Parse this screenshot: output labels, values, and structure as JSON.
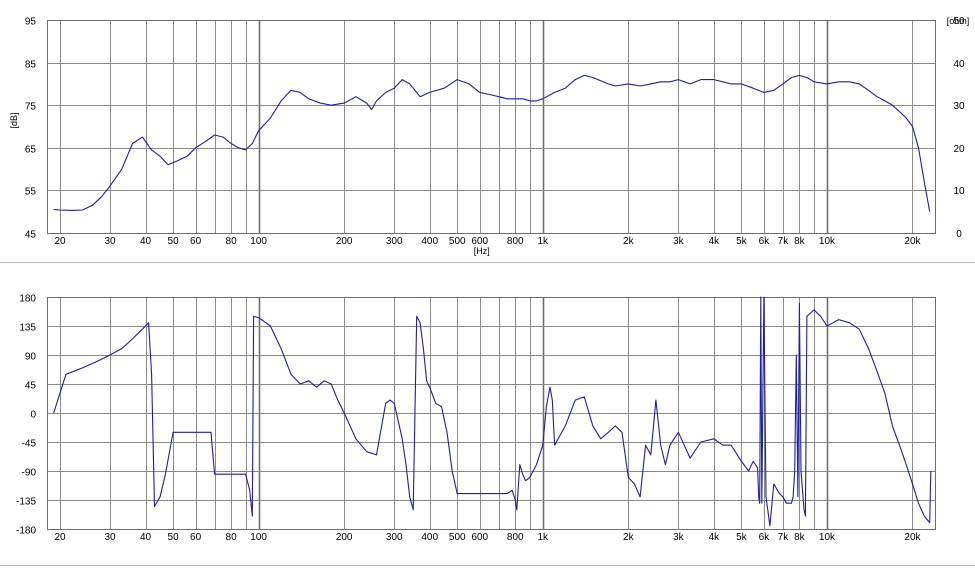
{
  "chart_data": [
    {
      "type": "line",
      "x_scale": "log",
      "xlim": [
        18,
        24000
      ],
      "ylim": [
        45,
        95
      ],
      "y2lim": [
        0,
        50
      ],
      "xlabel": "[Hz]",
      "ylabel": "[dB]",
      "y2label": "[ohm]",
      "grid": true,
      "line_color": "#1f1f9f",
      "x_ticks": [
        {
          "v": 20,
          "t": "20"
        },
        {
          "v": 30,
          "t": "30"
        },
        {
          "v": 40,
          "t": "40"
        },
        {
          "v": 50,
          "t": "50"
        },
        {
          "v": 60,
          "t": "60"
        },
        {
          "v": 80,
          "t": "80"
        },
        {
          "v": 100,
          "t": "100"
        },
        {
          "v": 200,
          "t": "200"
        },
        {
          "v": 300,
          "t": "300"
        },
        {
          "v": 400,
          "t": "400"
        },
        {
          "v": 500,
          "t": "500"
        },
        {
          "v": 600,
          "t": "600"
        },
        {
          "v": 800,
          "t": "800"
        },
        {
          "v": 1000,
          "t": "1k"
        },
        {
          "v": 2000,
          "t": "2k"
        },
        {
          "v": 3000,
          "t": "3k"
        },
        {
          "v": 4000,
          "t": "4k"
        },
        {
          "v": 5000,
          "t": "5k"
        },
        {
          "v": 6000,
          "t": "6k"
        },
        {
          "v": 7000,
          "t": "7k"
        },
        {
          "v": 8000,
          "t": "8k"
        },
        {
          "v": 10000,
          "t": "10k"
        },
        {
          "v": 20000,
          "t": "20k"
        }
      ],
      "y_ticks": [
        95,
        85,
        75,
        65,
        55,
        45
      ],
      "y2_ticks": [
        50,
        40,
        30,
        20,
        10,
        0
      ],
      "series": [
        {
          "x": [
            19,
            20,
            22,
            24,
            26,
            28,
            30,
            33,
            36,
            39,
            42,
            45,
            48,
            52,
            56,
            60,
            65,
            70,
            75,
            80,
            85,
            90,
            95,
            100,
            110,
            120,
            130,
            140,
            150,
            165,
            180,
            200,
            220,
            240,
            250,
            260,
            280,
            300,
            320,
            340,
            370,
            400,
            450,
            500,
            550,
            600,
            650,
            700,
            750,
            800,
            850,
            900,
            950,
            1000,
            1100,
            1200,
            1300,
            1400,
            1500,
            1700,
            1800,
            2000,
            2200,
            2400,
            2600,
            2800,
            3000,
            3300,
            3600,
            4000,
            4300,
            4600,
            5000,
            5500,
            6000,
            6500,
            7000,
            7500,
            8000,
            8500,
            9000,
            10000,
            11000,
            12000,
            13000,
            14000,
            15000,
            16000,
            17000,
            18000,
            19000,
            20000,
            21000,
            22000,
            23000
          ],
          "y": [
            50.5,
            50.4,
            50.3,
            50.4,
            51.5,
            53.5,
            56,
            60,
            66,
            67.5,
            64.5,
            63,
            61,
            62,
            63,
            65,
            66.5,
            68,
            67.5,
            66,
            65,
            64.5,
            66,
            69,
            72,
            76,
            78.5,
            78,
            76.5,
            75.5,
            75,
            75.5,
            77,
            75.5,
            74,
            76,
            78,
            79,
            81,
            80,
            77,
            78,
            79,
            81,
            80,
            78,
            77.5,
            77,
            76.5,
            76.5,
            76.5,
            76,
            76,
            76.5,
            78,
            79,
            81,
            82,
            81.5,
            80,
            79.5,
            80,
            79.5,
            80,
            80.5,
            80.5,
            81,
            80,
            81,
            81,
            80.5,
            80,
            80,
            79,
            78,
            78.5,
            80,
            81.5,
            82,
            81.5,
            80.5,
            80,
            80.5,
            80.5,
            80,
            78.5,
            77,
            76,
            75,
            73.5,
            72,
            70,
            65,
            57,
            50
          ]
        }
      ]
    },
    {
      "type": "line",
      "x_scale": "log",
      "xlim": [
        18,
        24000
      ],
      "ylim": [
        -180,
        180
      ],
      "grid": true,
      "line_color": "#1f1f9f",
      "x_ticks": [
        {
          "v": 20,
          "t": "20"
        },
        {
          "v": 30,
          "t": "30"
        },
        {
          "v": 40,
          "t": "40"
        },
        {
          "v": 50,
          "t": "50"
        },
        {
          "v": 60,
          "t": "60"
        },
        {
          "v": 80,
          "t": "80"
        },
        {
          "v": 100,
          "t": "100"
        },
        {
          "v": 200,
          "t": "200"
        },
        {
          "v": 300,
          "t": "300"
        },
        {
          "v": 400,
          "t": "400"
        },
        {
          "v": 500,
          "t": "500"
        },
        {
          "v": 600,
          "t": "600"
        },
        {
          "v": 800,
          "t": "800"
        },
        {
          "v": 1000,
          "t": "1k"
        },
        {
          "v": 2000,
          "t": "2k"
        },
        {
          "v": 3000,
          "t": "3k"
        },
        {
          "v": 4000,
          "t": "4k"
        },
        {
          "v": 5000,
          "t": "5k"
        },
        {
          "v": 6000,
          "t": "6k"
        },
        {
          "v": 7000,
          "t": "7k"
        },
        {
          "v": 8000,
          "t": "8k"
        },
        {
          "v": 10000,
          "t": "10k"
        },
        {
          "v": 20000,
          "t": "20k"
        }
      ],
      "y_ticks": [
        180,
        135,
        90,
        45,
        0,
        -45,
        -90,
        -135,
        -180
      ],
      "series": [
        {
          "x": [
            19,
            21,
            24,
            27,
            30,
            33,
            36,
            39,
            41,
            42,
            43,
            45,
            47,
            50,
            55,
            60,
            65,
            68,
            70,
            75,
            80,
            85,
            90,
            93,
            95,
            96,
            100,
            110,
            120,
            130,
            140,
            150,
            160,
            170,
            180,
            190,
            200,
            220,
            240,
            260,
            280,
            290,
            300,
            320,
            330,
            340,
            350,
            360,
            370,
            380,
            390,
            400,
            420,
            440,
            460,
            480,
            500,
            550,
            600,
            650,
            700,
            750,
            780,
            800,
            810,
            830,
            850,
            870,
            900,
            950,
            1000,
            1030,
            1060,
            1080,
            1100,
            1200,
            1300,
            1400,
            1500,
            1600,
            1700,
            1800,
            1900,
            2000,
            2100,
            2200,
            2300,
            2400,
            2500,
            2600,
            2700,
            2800,
            3000,
            3300,
            3600,
            4000,
            4300,
            4600,
            5000,
            5300,
            5500,
            5700,
            5750,
            5800,
            5850,
            5900,
            6000,
            6100,
            6300,
            6500,
            6800,
            7000,
            7200,
            7500,
            7600,
            7700,
            7800,
            7900,
            8000,
            8100,
            8200,
            8300,
            8400,
            8500,
            9000,
            9500,
            10000,
            10500,
            11000,
            12000,
            13000,
            14000,
            15000,
            16000,
            17000,
            18000,
            19000,
            20000,
            21000,
            22000,
            23000,
            23200
          ],
          "y": [
            0,
            60,
            70,
            80,
            90,
            100,
            115,
            130,
            140,
            60,
            -145,
            -130,
            -95,
            -30,
            -30,
            -30,
            -30,
            -30,
            -95,
            -95,
            -95,
            -95,
            -95,
            -120,
            -160,
            150,
            148,
            135,
            100,
            60,
            45,
            50,
            40,
            50,
            45,
            20,
            0,
            -40,
            -60,
            -65,
            15,
            20,
            15,
            -40,
            -80,
            -130,
            -150,
            150,
            140,
            100,
            50,
            40,
            15,
            10,
            -30,
            -90,
            -125,
            -125,
            -125,
            -125,
            -125,
            -125,
            -120,
            -135,
            -150,
            -80,
            -95,
            -105,
            -100,
            -80,
            -50,
            10,
            40,
            20,
            -50,
            -20,
            20,
            25,
            -20,
            -40,
            -30,
            -20,
            -30,
            -100,
            -110,
            -130,
            -50,
            -65,
            20,
            -50,
            -80,
            -50,
            -30,
            -70,
            -45,
            -40,
            -50,
            -50,
            -75,
            -90,
            -75,
            -85,
            -130,
            -140,
            180,
            -140,
            180,
            -130,
            -175,
            -110,
            -125,
            -130,
            -140,
            -140,
            -130,
            -90,
            90,
            -130,
            170,
            -90,
            -120,
            -150,
            -160,
            150,
            160,
            150,
            135,
            140,
            145,
            140,
            130,
            100,
            65,
            30,
            -20,
            -50,
            -80,
            -110,
            -140,
            -160,
            -170,
            -90
          ]
        }
      ]
    }
  ]
}
